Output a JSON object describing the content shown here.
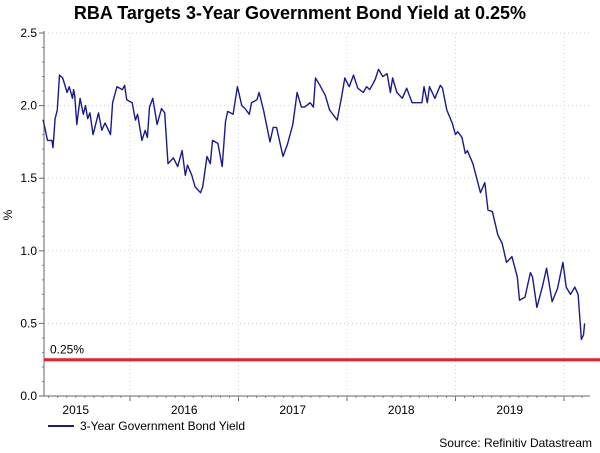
{
  "chart_data": {
    "type": "line",
    "title": "RBA Targets 3-Year Government Bond Yield at 0.25%",
    "xlabel": "",
    "ylabel": "%",
    "ylim": [
      0,
      2.5
    ],
    "xlim": [
      2015.2,
      2020.2
    ],
    "yticks": [
      "0.0",
      "0.5",
      "1.0",
      "1.5",
      "2.0",
      "2.5"
    ],
    "xtick_labels": [
      "2015",
      "2016",
      "2017",
      "2018",
      "2019"
    ],
    "grid": true,
    "legend_position": "bottom-left",
    "series": [
      {
        "name": "3-Year Government Bond Yield",
        "color": "#1a1a8c",
        "x": [
          2015.2,
          2015.24,
          2015.28,
          2015.29,
          2015.31,
          2015.33,
          2015.35,
          2015.38,
          2015.42,
          2015.44,
          2015.47,
          2015.48,
          2015.49,
          2015.51,
          2015.54,
          2015.57,
          2015.59,
          2015.61,
          2015.63,
          2015.66,
          2015.71,
          2015.74,
          2015.77,
          2015.79,
          2015.82,
          2015.84,
          2015.88,
          2015.93,
          2015.95,
          2015.97,
          2016.02,
          2016.05,
          2016.07,
          2016.11,
          2016.14,
          2016.16,
          2016.18,
          2016.21,
          2016.25,
          2016.29,
          2016.32,
          2016.35,
          2016.4,
          2016.44,
          2016.48,
          2016.51,
          2016.53,
          2016.57,
          2016.6,
          2016.65,
          2016.67,
          2016.71,
          2016.74,
          2016.76,
          2016.81,
          2016.85,
          2016.88,
          2016.9,
          2016.95,
          2016.99,
          2017.03,
          2017.06,
          2017.1,
          2017.12,
          2017.17,
          2017.19,
          2017.23,
          2017.29,
          2017.32,
          2017.35,
          2017.41,
          2017.45,
          2017.5,
          2017.54,
          2017.58,
          2017.61,
          2017.66,
          2017.69,
          2017.71,
          2017.75,
          2017.8,
          2017.84,
          2017.91,
          2017.95,
          2017.98,
          2018.02,
          2018.06,
          2018.1,
          2018.15,
          2018.18,
          2018.21,
          2018.26,
          2018.29,
          2018.33,
          2018.37,
          2018.4,
          2018.42,
          2018.46,
          2018.51,
          2018.55,
          2018.6,
          2018.65,
          2018.69,
          2018.71,
          2018.74,
          2018.76,
          2018.81,
          2018.86,
          2018.88,
          2018.92,
          2018.97,
          2019.0,
          2019.02,
          2019.06,
          2019.09,
          2019.11,
          2019.16,
          2019.23,
          2019.27,
          2019.3,
          2019.34,
          2019.39,
          2019.43,
          2019.47,
          2019.52,
          2019.57,
          2019.59,
          2019.64,
          2019.69,
          2019.71,
          2019.75,
          2019.8,
          2019.84,
          2019.89,
          2019.94,
          2019.99,
          2020.02,
          2020.06,
          2020.1,
          2020.13,
          2020.16,
          2020.18,
          2020.19
        ],
        "y": [
          1.9,
          1.76,
          1.76,
          1.71,
          1.91,
          1.97,
          2.21,
          2.19,
          2.09,
          2.13,
          2.05,
          2.11,
          2.07,
          1.87,
          2.05,
          1.94,
          2.0,
          1.91,
          1.95,
          1.8,
          1.95,
          1.83,
          1.88,
          1.85,
          1.8,
          2.02,
          2.13,
          2.11,
          2.14,
          2.04,
          2.02,
          1.9,
          1.94,
          1.76,
          1.83,
          1.78,
          1.99,
          2.05,
          1.87,
          1.98,
          1.95,
          1.6,
          1.64,
          1.58,
          1.69,
          1.52,
          1.59,
          1.52,
          1.44,
          1.4,
          1.44,
          1.65,
          1.6,
          1.76,
          1.74,
          1.58,
          1.89,
          1.96,
          1.94,
          2.13,
          2.0,
          1.98,
          1.94,
          2.02,
          2.04,
          2.09,
          1.97,
          1.75,
          1.85,
          1.85,
          1.65,
          1.73,
          1.87,
          2.09,
          1.99,
          1.99,
          2.02,
          1.99,
          2.19,
          2.14,
          2.07,
          1.97,
          1.9,
          2.06,
          2.19,
          2.13,
          2.21,
          2.12,
          2.09,
          2.13,
          2.11,
          2.18,
          2.25,
          2.2,
          2.22,
          2.09,
          2.19,
          2.09,
          2.05,
          2.12,
          2.02,
          2.02,
          2.02,
          2.13,
          2.02,
          2.13,
          2.05,
          2.14,
          2.12,
          1.97,
          1.88,
          1.8,
          1.82,
          1.78,
          1.67,
          1.69,
          1.6,
          1.4,
          1.47,
          1.28,
          1.27,
          1.11,
          1.05,
          0.92,
          0.96,
          0.82,
          0.66,
          0.68,
          0.85,
          0.82,
          0.61,
          0.75,
          0.88,
          0.65,
          0.74,
          0.92,
          0.75,
          0.7,
          0.75,
          0.7,
          0.39,
          0.42,
          0.5
        ]
      }
    ],
    "reference_line": {
      "value": 0.25,
      "label": "0.25%",
      "color": "#e8202a"
    },
    "source": "Source: Refinitiv Datastream"
  }
}
